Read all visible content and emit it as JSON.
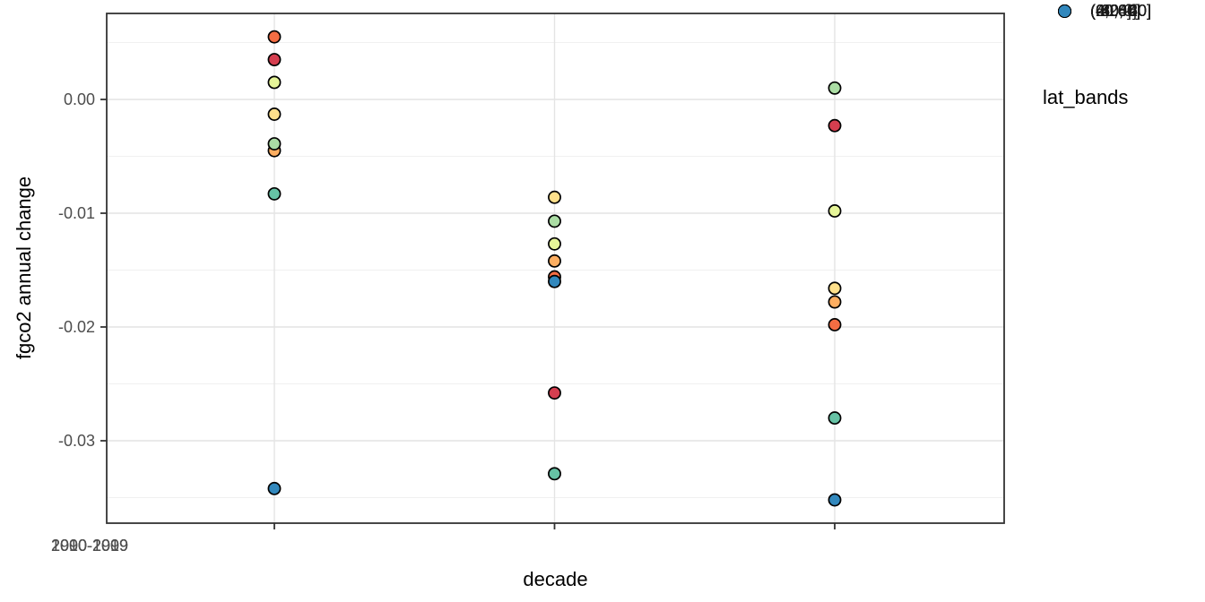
{
  "chart_data": {
    "type": "scatter",
    "title": "",
    "xlabel": "decade",
    "ylabel": "fgco2 annual change",
    "categories": [
      "1990-1999",
      "2000-2009",
      "2010-2019"
    ],
    "y_ticks": [
      0.0,
      -0.01,
      -0.02,
      -0.03
    ],
    "y_tick_labels": [
      "0.00",
      "-0.01",
      "-0.02",
      "-0.03"
    ],
    "y_minor_step": 0.005,
    "ylim": [
      -0.0372,
      0.0076
    ],
    "grid": true,
    "legend_title": "lat_bands",
    "legend_position": "right",
    "series": [
      {
        "name": "(-80,-60]",
        "color": "#d53e4f",
        "values": [
          0.0035,
          -0.0258,
          -0.0023
        ]
      },
      {
        "name": "(-60,-40]",
        "color": "#f46d43",
        "values": [
          0.0055,
          -0.0156,
          -0.0198
        ]
      },
      {
        "name": "(-40,-20]",
        "color": "#fdae61",
        "values": [
          -0.0045,
          -0.0142,
          -0.0178
        ]
      },
      {
        "name": "(-20,0]",
        "color": "#fee08b",
        "values": [
          -0.0013,
          -0.0086,
          -0.0166
        ]
      },
      {
        "name": "(0,20]",
        "color": "#e6f598",
        "values": [
          0.0015,
          -0.0127,
          -0.0098
        ]
      },
      {
        "name": "(20,40]",
        "color": "#abdda4",
        "values": [
          -0.0039,
          -0.0107,
          0.001
        ]
      },
      {
        "name": "(40,60]",
        "color": "#66c2a5",
        "values": [
          -0.0083,
          -0.0329,
          -0.028
        ]
      },
      {
        "name": "(60,80]",
        "color": "#3288bd",
        "values": [
          -0.0342,
          -0.016,
          -0.0352
        ]
      }
    ],
    "style_colors": {
      "panel_background": "#ffffff",
      "panel_border": "#333333",
      "grid_major": "#e4e4e4",
      "grid_minor": "#f0f0f0",
      "tick_mark": "#333333",
      "tick_label": "#4d4d4d",
      "point_outline": "#000000"
    }
  }
}
